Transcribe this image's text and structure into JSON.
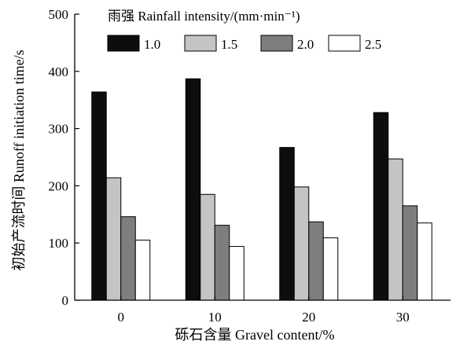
{
  "chart_data": {
    "type": "bar",
    "title": "",
    "xlabel": "砾石含量 Gravel content/%",
    "ylabel": "初始产流时间 Runoff initiation time/s",
    "categories": [
      "0",
      "10",
      "20",
      "30"
    ],
    "ylim": [
      0,
      500
    ],
    "yticks": [
      "0",
      "100",
      "200",
      "300",
      "400",
      "500"
    ],
    "legend": {
      "title": "雨强 Rainfall intensity/(mm·min⁻¹)",
      "placement": "top"
    },
    "series": [
      {
        "name": "1.0",
        "color": "#0d0d0d",
        "values": [
          364,
          387,
          267,
          328
        ]
      },
      {
        "name": "1.5",
        "color": "#c4c4c4",
        "values": [
          214,
          185,
          198,
          247
        ]
      },
      {
        "name": "2.0",
        "color": "#7e7e7e",
        "values": [
          146,
          131,
          137,
          165
        ]
      },
      {
        "name": "2.5",
        "color": "#ffffff",
        "values": [
          105,
          94,
          109,
          135
        ]
      }
    ],
    "grid": false
  }
}
